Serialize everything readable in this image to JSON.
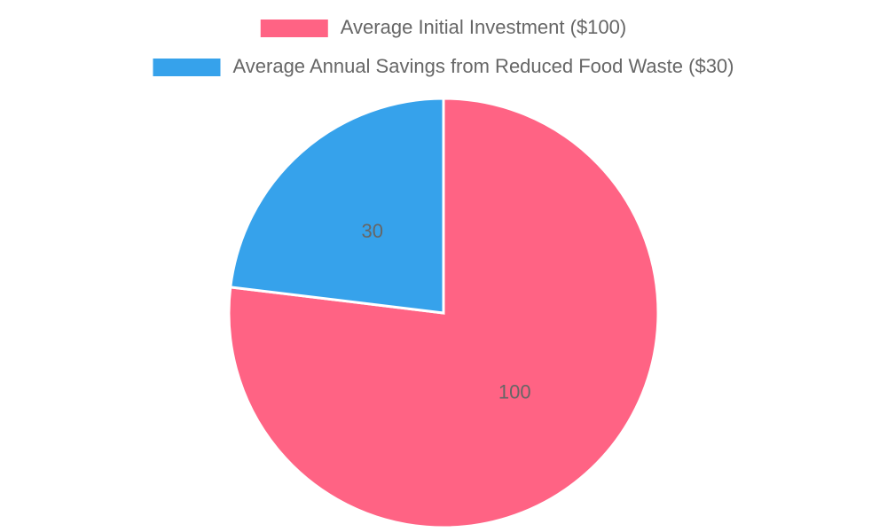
{
  "chart_data": {
    "type": "pie",
    "categories": [
      "Average Initial Investment ($100)",
      "Average Annual Savings from Reduced Food Waste ($30)"
    ],
    "values": [
      100,
      30
    ],
    "colors": [
      "#ff6384",
      "#36a2eb"
    ],
    "legend": "top"
  }
}
